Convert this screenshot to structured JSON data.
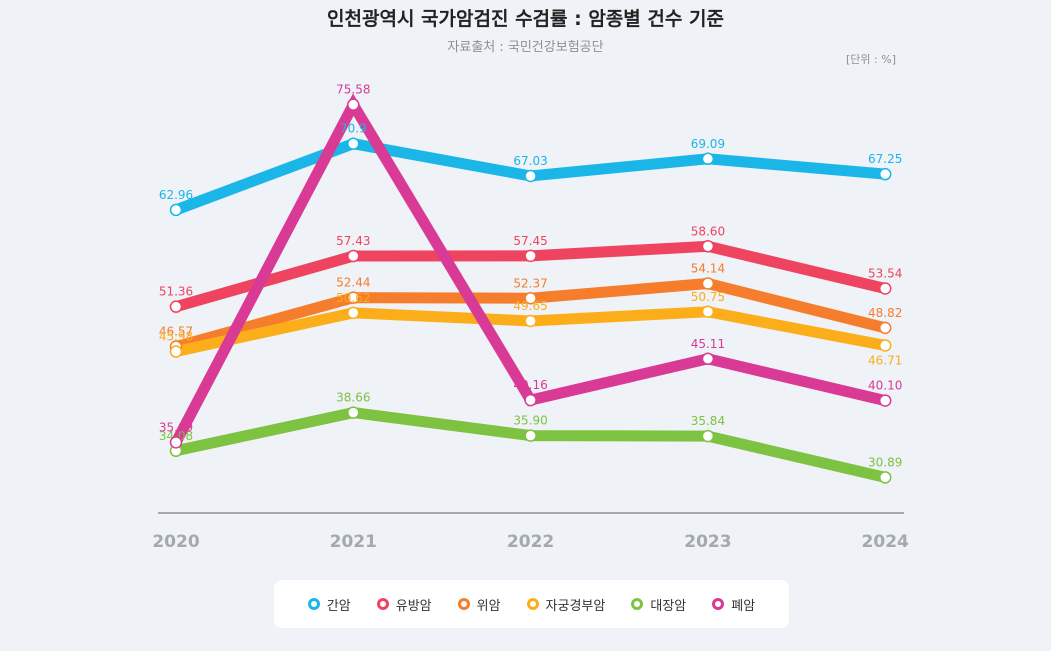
{
  "chart_data": {
    "type": "line",
    "title": "인천광역시 국가암검진 수검률 : 암종별 건수 기준",
    "subtitle": "자료출처 : 국민건강보험공단",
    "unit": "[단위 : %]",
    "xlabel": "",
    "ylabel": "",
    "x": [
      "2020",
      "2021",
      "2022",
      "2023",
      "2024"
    ],
    "ylim": [
      28,
      78
    ],
    "grid": false,
    "legend_position": "bottom",
    "series": [
      {
        "name": "간암",
        "color": "#1ab6e8",
        "values": [
          62.96,
          70.9,
          67.03,
          69.09,
          67.25
        ],
        "labels": [
          "62.96",
          "70.9",
          "67.03",
          "69.09",
          "67.25"
        ]
      },
      {
        "name": "유방암",
        "color": "#ee4460",
        "values": [
          51.36,
          57.43,
          57.45,
          58.6,
          53.54
        ],
        "labels": [
          "51.36",
          "57.43",
          "57.45",
          "58.60",
          "53.54"
        ]
      },
      {
        "name": "위암",
        "color": "#f57d2b",
        "values": [
          46.57,
          52.44,
          52.37,
          54.14,
          48.82
        ],
        "labels": [
          "46.57",
          "52.44",
          "52.37",
          "54.14",
          "48.82"
        ]
      },
      {
        "name": "자궁경부암",
        "color": "#fbae1a",
        "values": [
          45.98,
          50.62,
          49.65,
          50.75,
          46.71
        ],
        "labels": [
          "45.98",
          "50.62",
          "49.65",
          "50.75",
          "46.71"
        ]
      },
      {
        "name": "대장암",
        "color": "#7ec241",
        "values": [
          34.08,
          38.66,
          35.9,
          35.84,
          30.89
        ],
        "labels": [
          "34.08",
          "38.66",
          "35.90",
          "35.84",
          "30.89"
        ]
      },
      {
        "name": "폐암",
        "color": "#d93a96",
        "values": [
          35.09,
          75.58,
          40.16,
          45.11,
          40.1
        ],
        "labels": [
          "35.09",
          "75.58",
          "40.16",
          "45.11",
          "40.10"
        ]
      }
    ]
  }
}
